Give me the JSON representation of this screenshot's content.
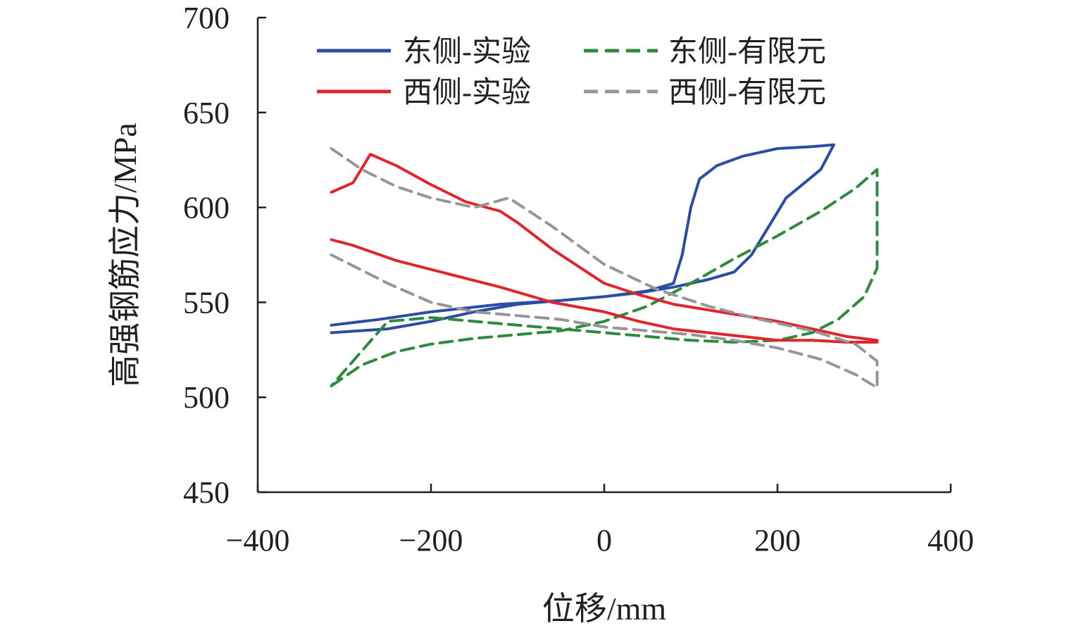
{
  "chart_data": {
    "type": "line",
    "title": "",
    "xlabel": "位移/mm",
    "ylabel": "高强钢筋应力/MPa",
    "xlim": [
      -400,
      400
    ],
    "ylim": [
      450,
      700
    ],
    "xticks": [
      -400,
      -200,
      0,
      200,
      400
    ],
    "xtick_labels": [
      "−400",
      "−200",
      "0",
      "200",
      "400"
    ],
    "yticks": [
      450,
      500,
      550,
      600,
      650,
      700
    ],
    "ytick_labels": [
      "450",
      "500",
      "550",
      "600",
      "650",
      "700"
    ],
    "grid": false,
    "legend_position": "top",
    "series": [
      {
        "name": "东侧-实验",
        "color": "#2b4da3",
        "style": "solid",
        "x": [
          -315,
          -250,
          -200,
          -150,
          -100,
          -50,
          0,
          50,
          80,
          90,
          100,
          110,
          130,
          160,
          200,
          240,
          265,
          250,
          210,
          190,
          170,
          150,
          120,
          100,
          80,
          40,
          0,
          -50,
          -120,
          -200,
          -260,
          -315
        ],
        "y": [
          534,
          536,
          540,
          545,
          549,
          551,
          553,
          556,
          560,
          575,
          600,
          615,
          622,
          627,
          631,
          632,
          633,
          620,
          605,
          590,
          575,
          566,
          562,
          560,
          558,
          555,
          553,
          551,
          549,
          545,
          541,
          538
        ]
      },
      {
        "name": "东侧-有限元",
        "color": "#2e8b3e",
        "style": "dashed",
        "x": [
          -315,
          -280,
          -240,
          -200,
          -150,
          -100,
          -50,
          0,
          50,
          100,
          150,
          200,
          250,
          290,
          315,
          315,
          300,
          270,
          240,
          200,
          150,
          100,
          50,
          0,
          -50,
          -100,
          -150,
          -200,
          -250,
          -315
        ],
        "y": [
          506,
          517,
          524,
          528,
          531,
          533,
          535,
          540,
          548,
          560,
          573,
          585,
          598,
          610,
          620,
          568,
          553,
          541,
          534,
          530,
          529,
          530,
          532,
          534,
          536,
          538,
          540,
          542,
          540,
          506
        ]
      },
      {
        "name": "西侧-实验",
        "color": "#e0262c",
        "style": "solid",
        "x": [
          -315,
          -290,
          -270,
          -240,
          -200,
          -160,
          -120,
          -100,
          -60,
          -20,
          0,
          40,
          80,
          120,
          160,
          200,
          240,
          280,
          315,
          315,
          280,
          240,
          200,
          160,
          120,
          80,
          40,
          0,
          -60,
          -120,
          -180,
          -240,
          -290,
          -315
        ],
        "y": [
          608,
          613,
          628,
          622,
          612,
          603,
          598,
          592,
          578,
          566,
          560,
          554,
          549,
          546,
          543,
          540,
          536,
          532,
          530,
          529,
          529,
          530,
          530,
          532,
          534,
          536,
          540,
          545,
          550,
          558,
          565,
          572,
          580,
          583
        ]
      },
      {
        "name": "西侧-有限元",
        "color": "#969696",
        "style": "dashed",
        "x": [
          -315,
          -280,
          -240,
          -200,
          -150,
          -110,
          -60,
          0,
          60,
          120,
          180,
          240,
          290,
          315,
          315,
          290,
          250,
          200,
          150,
          100,
          50,
          0,
          -50,
          -100,
          -150,
          -200,
          -250,
          -315
        ],
        "y": [
          631,
          620,
          611,
          605,
          600,
          605,
          590,
          570,
          557,
          548,
          541,
          535,
          528,
          519,
          505,
          512,
          520,
          526,
          530,
          533,
          535,
          537,
          541,
          543,
          545,
          550,
          560,
          575
        ]
      }
    ]
  }
}
